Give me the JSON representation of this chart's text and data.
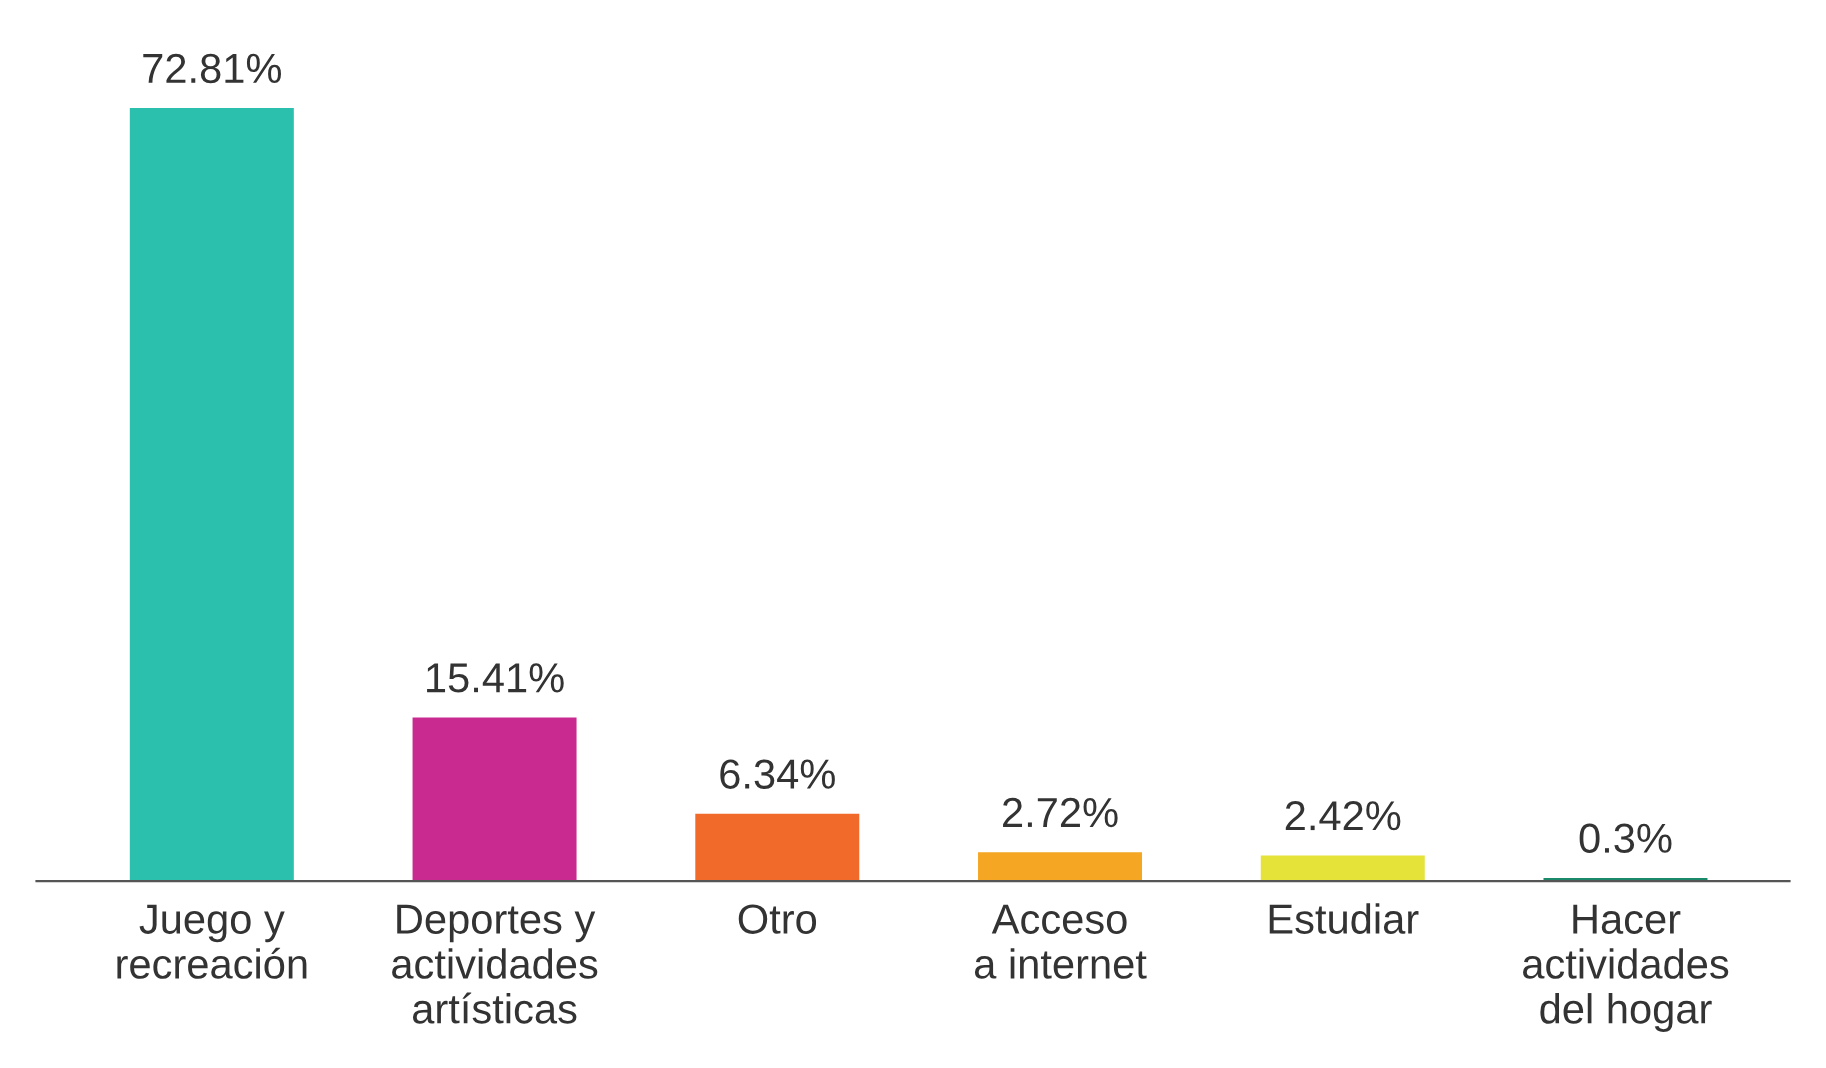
{
  "chart_data": {
    "type": "bar",
    "categories": [
      "Juego y\nrecreación",
      "Deportes y\nactividades\nartísticas",
      "Otro",
      "Acceso\na internet",
      "Estudiar",
      "Hacer\nactividades\ndel hogar"
    ],
    "values": [
      72.81,
      15.41,
      6.34,
      2.72,
      2.42,
      0.3
    ],
    "colors": [
      "#2bbfad",
      "#c92a8f",
      "#f26a2a",
      "#f5a623",
      "#e5e23a",
      "#1a8a6a"
    ],
    "value_labels": [
      "72.81%",
      "15.41%",
      "6.34%",
      "2.72%",
      "2.42%",
      "0.3%"
    ],
    "grid": false,
    "legend": false
  }
}
